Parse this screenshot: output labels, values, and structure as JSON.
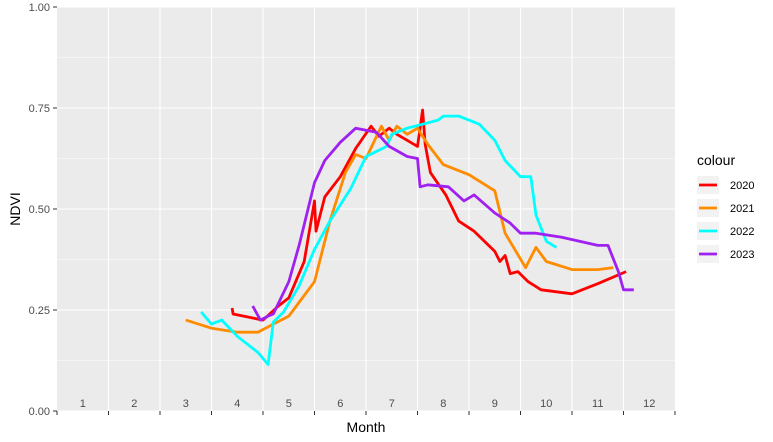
{
  "chart_data": {
    "type": "line",
    "xlabel": "Month",
    "ylabel": "NDVI",
    "xlim": [
      0.5,
      12.5
    ],
    "ylim": [
      0,
      1
    ],
    "x_ticks": [
      1,
      2,
      3,
      4,
      5,
      6,
      7,
      8,
      9,
      10,
      11,
      12
    ],
    "y_ticks": [
      "0.00",
      "0.25",
      "0.50",
      "0.75",
      "1.00"
    ],
    "grid": true,
    "legend": {
      "title": "colour",
      "position": "right"
    },
    "series": [
      {
        "name": "2020",
        "color": "#FF0000",
        "points": [
          [
            3.9,
            0.255
          ],
          [
            3.92,
            0.24
          ],
          [
            4.5,
            0.225
          ],
          [
            4.8,
            0.26
          ],
          [
            5.0,
            0.28
          ],
          [
            5.3,
            0.37
          ],
          [
            5.5,
            0.52
          ],
          [
            5.53,
            0.445
          ],
          [
            5.7,
            0.53
          ],
          [
            6.0,
            0.58
          ],
          [
            6.3,
            0.65
          ],
          [
            6.6,
            0.705
          ],
          [
            6.75,
            0.68
          ],
          [
            6.95,
            0.7
          ],
          [
            7.1,
            0.685
          ],
          [
            7.3,
            0.67
          ],
          [
            7.5,
            0.655
          ],
          [
            7.6,
            0.745
          ],
          [
            7.65,
            0.66
          ],
          [
            7.75,
            0.59
          ],
          [
            8.05,
            0.535
          ],
          [
            8.3,
            0.47
          ],
          [
            8.6,
            0.445
          ],
          [
            9.0,
            0.395
          ],
          [
            9.1,
            0.37
          ],
          [
            9.2,
            0.385
          ],
          [
            9.3,
            0.34
          ],
          [
            9.45,
            0.345
          ],
          [
            9.65,
            0.32
          ],
          [
            9.9,
            0.3
          ],
          [
            10.5,
            0.29
          ],
          [
            11.0,
            0.315
          ],
          [
            11.55,
            0.345
          ]
        ]
      },
      {
        "name": "2021",
        "color": "#FF8C00",
        "points": [
          [
            3.0,
            0.225
          ],
          [
            3.5,
            0.205
          ],
          [
            4.0,
            0.195
          ],
          [
            4.4,
            0.195
          ],
          [
            4.7,
            0.215
          ],
          [
            5.0,
            0.235
          ],
          [
            5.5,
            0.32
          ],
          [
            5.8,
            0.47
          ],
          [
            6.1,
            0.59
          ],
          [
            6.3,
            0.635
          ],
          [
            6.5,
            0.625
          ],
          [
            6.8,
            0.705
          ],
          [
            6.95,
            0.67
          ],
          [
            7.1,
            0.705
          ],
          [
            7.3,
            0.685
          ],
          [
            7.5,
            0.7
          ],
          [
            7.7,
            0.66
          ],
          [
            8.0,
            0.61
          ],
          [
            8.5,
            0.585
          ],
          [
            9.0,
            0.545
          ],
          [
            9.2,
            0.44
          ],
          [
            9.6,
            0.355
          ],
          [
            9.8,
            0.405
          ],
          [
            10.0,
            0.37
          ],
          [
            10.5,
            0.35
          ],
          [
            11.0,
            0.35
          ],
          [
            11.3,
            0.355
          ]
        ]
      },
      {
        "name": "2022",
        "color": "#00FFFF",
        "points": [
          [
            3.3,
            0.245
          ],
          [
            3.5,
            0.215
          ],
          [
            3.7,
            0.225
          ],
          [
            4.0,
            0.185
          ],
          [
            4.4,
            0.145
          ],
          [
            4.6,
            0.115
          ],
          [
            4.7,
            0.22
          ],
          [
            4.9,
            0.245
          ],
          [
            5.2,
            0.31
          ],
          [
            5.5,
            0.4
          ],
          [
            5.8,
            0.47
          ],
          [
            6.2,
            0.55
          ],
          [
            6.5,
            0.63
          ],
          [
            6.9,
            0.655
          ],
          [
            7.0,
            0.685
          ],
          [
            7.3,
            0.7
          ],
          [
            7.6,
            0.71
          ],
          [
            7.9,
            0.72
          ],
          [
            8.0,
            0.73
          ],
          [
            8.3,
            0.73
          ],
          [
            8.7,
            0.71
          ],
          [
            9.0,
            0.67
          ],
          [
            9.2,
            0.62
          ],
          [
            9.5,
            0.58
          ],
          [
            9.7,
            0.58
          ],
          [
            9.8,
            0.485
          ],
          [
            10.0,
            0.42
          ],
          [
            10.2,
            0.405
          ]
        ]
      },
      {
        "name": "2023",
        "color": "#A020F0",
        "points": [
          [
            4.3,
            0.26
          ],
          [
            4.45,
            0.225
          ],
          [
            4.6,
            0.235
          ],
          [
            4.7,
            0.24
          ],
          [
            5.0,
            0.32
          ],
          [
            5.2,
            0.41
          ],
          [
            5.5,
            0.565
          ],
          [
            5.7,
            0.62
          ],
          [
            6.0,
            0.665
          ],
          [
            6.3,
            0.7
          ],
          [
            6.7,
            0.69
          ],
          [
            6.95,
            0.655
          ],
          [
            7.3,
            0.63
          ],
          [
            7.5,
            0.625
          ],
          [
            7.55,
            0.555
          ],
          [
            7.7,
            0.56
          ],
          [
            8.1,
            0.555
          ],
          [
            8.4,
            0.52
          ],
          [
            8.6,
            0.535
          ],
          [
            9.0,
            0.49
          ],
          [
            9.3,
            0.465
          ],
          [
            9.5,
            0.44
          ],
          [
            9.8,
            0.44
          ],
          [
            10.3,
            0.43
          ],
          [
            11.0,
            0.41
          ],
          [
            11.2,
            0.41
          ],
          [
            11.4,
            0.345
          ],
          [
            11.5,
            0.3
          ],
          [
            11.7,
            0.3
          ]
        ]
      }
    ]
  }
}
